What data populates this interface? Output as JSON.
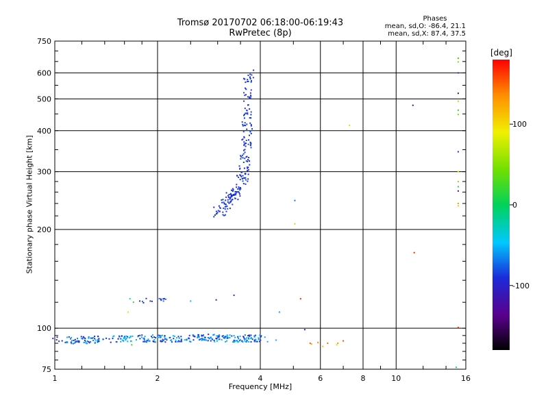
{
  "chart_data": {
    "type": "scatter",
    "title": "Tromsø 20170702 06:18:00-06:19:43",
    "subtitle": "RwPretec (8p)",
    "xlabel": "Frequency [MHz]",
    "ylabel": "Stationary phase Virtual Height [km]",
    "x_scale": "log",
    "y_scale": "log",
    "xlim": [
      1,
      16
    ],
    "ylim": [
      75,
      750
    ],
    "xticks": [
      "1",
      "2",
      "4",
      "6",
      "8",
      "10",
      "16"
    ],
    "xtick_values": [
      1,
      2,
      4,
      6,
      8,
      10,
      16
    ],
    "yticks": [
      "75",
      "100",
      "200",
      "300",
      "400",
      "500",
      "600",
      "750"
    ],
    "ytick_values": [
      75,
      100,
      200,
      300,
      400,
      500,
      600,
      750
    ],
    "grid": true,
    "stats_header": "Phases",
    "stats_o": "mean, sd,O: -86.4, 21.1",
    "stats_x": "mean, sd,X:  87.4, 37.5",
    "colorbar": {
      "label": "[deg]",
      "range": [
        -180,
        180
      ],
      "ticks": [
        "100",
        "0",
        "-100"
      ],
      "tick_values": [
        100,
        0,
        -100
      ]
    },
    "points": [
      {
        "x": 5.05,
        "y": 245,
        "c": "#0b72ff"
      },
      {
        "x": 5.05,
        "y": 208,
        "c": "#b7e800"
      },
      {
        "x": 5.25,
        "y": 123,
        "c": "#ff2a00"
      },
      {
        "x": 4.55,
        "y": 112,
        "c": "#00a6ff"
      },
      {
        "x": 3.35,
        "y": 126,
        "c": "#1a2bd9"
      },
      {
        "x": 2.97,
        "y": 122,
        "c": "#1a2bd9"
      },
      {
        "x": 2.5,
        "y": 121,
        "c": "#00b7ff"
      },
      {
        "x": 1.64,
        "y": 112,
        "c": "#d9e800"
      },
      {
        "x": 1.66,
        "y": 123,
        "c": "#00d6e0"
      },
      {
        "x": 1.7,
        "y": 120,
        "c": "#35d13a"
      },
      {
        "x": 1.68,
        "y": 89,
        "c": "#39c63a"
      },
      {
        "x": 7.3,
        "y": 415,
        "c": "#e8d800"
      },
      {
        "x": 11.2,
        "y": 478,
        "c": "#0a27b8"
      },
      {
        "x": 11.3,
        "y": 170,
        "c": "#ff2200"
      },
      {
        "x": 15.2,
        "y": 665,
        "c": "#48d100"
      },
      {
        "x": 15.2,
        "y": 648,
        "c": "#7adf00"
      },
      {
        "x": 15.2,
        "y": 600,
        "c": "#2233dd"
      },
      {
        "x": 15.2,
        "y": 520,
        "c": "#222222"
      },
      {
        "x": 15.2,
        "y": 492,
        "c": "#d0d000"
      },
      {
        "x": 15.2,
        "y": 462,
        "c": "#39c63a"
      },
      {
        "x": 15.2,
        "y": 448,
        "c": "#7adf00"
      },
      {
        "x": 15.2,
        "y": 345,
        "c": "#1a2bd9"
      },
      {
        "x": 15.2,
        "y": 300,
        "c": "#e0e000"
      },
      {
        "x": 15.2,
        "y": 280,
        "c": "#8ee000"
      },
      {
        "x": 15.2,
        "y": 270,
        "c": "#39c63a"
      },
      {
        "x": 15.2,
        "y": 262,
        "c": "#5500aa"
      },
      {
        "x": 15.2,
        "y": 240,
        "c": "#f0a000"
      },
      {
        "x": 15.2,
        "y": 236,
        "c": "#e0d000"
      },
      {
        "x": 15.2,
        "y": 100.5,
        "c": "#ff2200"
      },
      {
        "x": 15.0,
        "y": 76,
        "c": "#00d0e8"
      },
      {
        "x": 5.6,
        "y": 90,
        "c": "#ff5a00"
      },
      {
        "x": 5.65,
        "y": 89.5,
        "c": "#ffa000"
      },
      {
        "x": 5.9,
        "y": 90.5,
        "c": "#ff8a00"
      },
      {
        "x": 6.1,
        "y": 88,
        "c": "#ffb000"
      },
      {
        "x": 6.3,
        "y": 90,
        "c": "#ff6a00"
      },
      {
        "x": 6.75,
        "y": 90,
        "c": "#ff8a00"
      },
      {
        "x": 7.0,
        "y": 91.5,
        "c": "#ff4400"
      },
      {
        "x": 6.7,
        "y": 89,
        "c": "#b7e800"
      },
      {
        "x": 5.4,
        "y": 99,
        "c": "#1a2bd9"
      },
      {
        "x": 4.2,
        "y": 91,
        "c": "#00b7ff"
      },
      {
        "x": 4.45,
        "y": 92,
        "c": "#00b7ff"
      }
    ],
    "clusters": [
      {
        "name": "F-trace",
        "colors": [
          "#1a2bd9",
          "#0b40e0",
          "#1430c8",
          "#2a3ae8"
        ],
        "path": [
          [
            3.0,
            225
          ],
          [
            3.1,
            232
          ],
          [
            3.2,
            240
          ],
          [
            3.3,
            250
          ],
          [
            3.4,
            258
          ],
          [
            3.48,
            270
          ],
          [
            3.55,
            285
          ],
          [
            3.6,
            305
          ],
          [
            3.63,
            340
          ],
          [
            3.65,
            380
          ],
          [
            3.67,
            430
          ],
          [
            3.68,
            480
          ],
          [
            3.69,
            540
          ],
          [
            3.7,
            600
          ]
        ],
        "count": 230,
        "jitter": [
          0.035,
          0.04
        ]
      },
      {
        "name": "E-trace",
        "colors": [
          "#00b7ff",
          "#1a2bd9",
          "#0b72ff",
          "#00a6ff",
          "#1430c8"
        ],
        "path": [
          [
            1.0,
            92
          ],
          [
            1.2,
            92
          ],
          [
            1.45,
            92.5
          ],
          [
            1.7,
            93
          ],
          [
            2.0,
            93
          ],
          [
            2.4,
            93
          ],
          [
            2.8,
            93.5
          ],
          [
            3.2,
            93
          ],
          [
            3.6,
            93
          ],
          [
            4.1,
            93
          ]
        ],
        "count": 330,
        "jitter": [
          0.02,
          0.025
        ]
      },
      {
        "name": "Es-patch",
        "colors": [
          "#1a2bd9",
          "#0b72ff"
        ],
        "path": [
          [
            1.78,
            120
          ],
          [
            1.84,
            122
          ],
          [
            2.05,
            122
          ],
          [
            2.1,
            122
          ]
        ],
        "count": 14,
        "jitter": [
          0.01,
          0.012
        ]
      }
    ]
  }
}
